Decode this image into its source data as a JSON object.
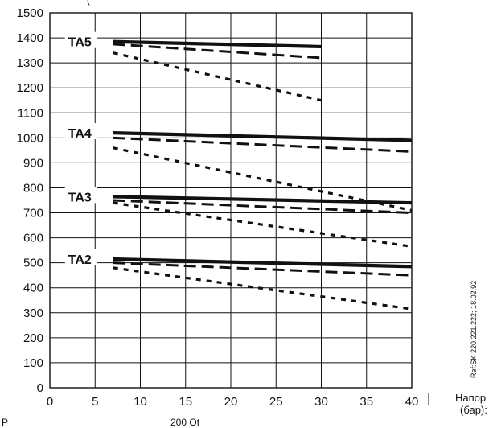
{
  "chart_data": {
    "type": "line",
    "y_axis_label_partial": "(",
    "x_axis_label_line1": "Напор",
    "x_axis_label_line2": "(бар):",
    "bottom_caption_partial": "P",
    "bottom_caption_partial2": "200  Ot",
    "reference_note": "Ref:SK 220.221.222; 18.02.92",
    "xlim": [
      0,
      40
    ],
    "ylim": [
      0,
      1500
    ],
    "x_ticks": [
      "0",
      "5",
      "10",
      "15",
      "20",
      "25",
      "30",
      "35",
      "40"
    ],
    "y_ticks": [
      "0",
      "100",
      "200",
      "300",
      "400",
      "500",
      "600",
      "700",
      "800",
      "900",
      "1000",
      "1100",
      "1200",
      "1300",
      "1400",
      "1500"
    ],
    "grid": true,
    "groups": [
      {
        "label": "TA5",
        "series": [
          {
            "style": "solid",
            "x": [
              7,
              30
            ],
            "y": [
              1385,
              1365
            ]
          },
          {
            "style": "dashed",
            "x": [
              7,
              30
            ],
            "y": [
              1375,
              1320
            ]
          },
          {
            "style": "dotted",
            "x": [
              7,
              30
            ],
            "y": [
              1340,
              1150
            ]
          }
        ]
      },
      {
        "label": "TA4",
        "series": [
          {
            "style": "solid",
            "x": [
              7,
              40
            ],
            "y": [
              1020,
              990
            ]
          },
          {
            "style": "dashed",
            "x": [
              7,
              40
            ],
            "y": [
              1000,
              945
            ]
          },
          {
            "style": "dotted",
            "x": [
              7,
              40
            ],
            "y": [
              960,
              710
            ]
          }
        ]
      },
      {
        "label": "TA3",
        "series": [
          {
            "style": "solid",
            "x": [
              7,
              40
            ],
            "y": [
              765,
              740
            ]
          },
          {
            "style": "dashed",
            "x": [
              7,
              40
            ],
            "y": [
              750,
              700
            ]
          },
          {
            "style": "dotted",
            "x": [
              7,
              40
            ],
            "y": [
              740,
              565
            ]
          }
        ]
      },
      {
        "label": "TA2",
        "series": [
          {
            "style": "solid",
            "x": [
              7,
              40
            ],
            "y": [
              515,
              485
            ]
          },
          {
            "style": "dashed",
            "x": [
              7,
              40
            ],
            "y": [
              500,
              450
            ]
          },
          {
            "style": "dotted",
            "x": [
              7,
              40
            ],
            "y": [
              480,
              315
            ]
          }
        ]
      }
    ]
  }
}
